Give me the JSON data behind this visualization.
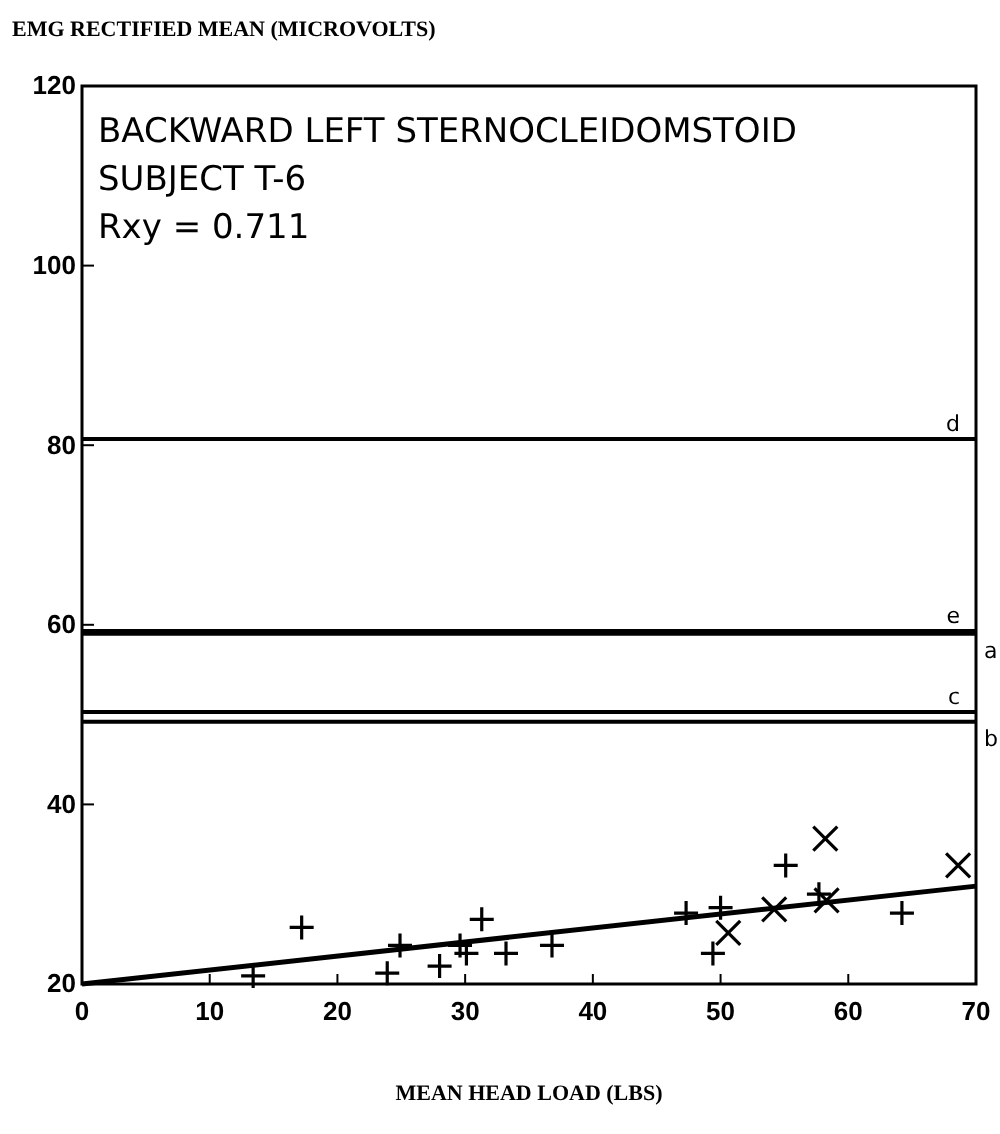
{
  "chart_data": {
    "type": "scatter",
    "ylabel": "EMG RECTIFIED MEAN (MICROVOLTS)",
    "xlabel": "MEAN HEAD LOAD (LBS)",
    "annotations": [
      "BACKWARD LEFT STERNOCLEIDOMSTOID",
      "SUBJECT T-6",
      "Rxy = 0.711"
    ],
    "xlim": [
      0,
      70
    ],
    "xticks": [
      0,
      10,
      20,
      30,
      40,
      50,
      60,
      70
    ],
    "ylim": [
      20,
      120
    ],
    "yticks": [
      20,
      40,
      60,
      80,
      100,
      120
    ],
    "series": [
      {
        "marker": "cross",
        "color": "#000000",
        "x": [
          17.2,
          13.4,
          23.9,
          24.9,
          28.0,
          29.6,
          30.1,
          31.3,
          33.2,
          36.8,
          47.3,
          50.0,
          49.4,
          55.1,
          57.7,
          64.2
        ],
        "values": [
          26.3,
          20.9,
          21.2,
          24.3,
          22,
          24.3,
          23.4,
          27.2,
          23.4,
          24.3,
          27.9,
          28.5,
          23.4,
          33.2,
          30.0,
          27.9
        ]
      },
      {
        "marker": "x",
        "color": "#000000",
        "x": [
          58.2,
          50.6,
          54.2,
          58.3,
          68.6
        ],
        "values": [
          36.2,
          25.7,
          28.3,
          29.3,
          33.2
        ]
      },
      {
        "type": "line",
        "color": "#000000",
        "x": [
          0,
          70
        ],
        "values": [
          20,
          30.9
        ]
      }
    ],
    "ref_lines": [
      {
        "axis": "y",
        "value": 80.7,
        "label": "d"
      },
      {
        "axis": "y",
        "value": 59.3,
        "label": "e"
      },
      {
        "axis": "y",
        "value": 50.3,
        "label": "c"
      },
      {
        "axis": "y",
        "value": 59,
        "label": "a"
      },
      {
        "axis": "y",
        "value": 49.2,
        "label": "b"
      }
    ]
  }
}
